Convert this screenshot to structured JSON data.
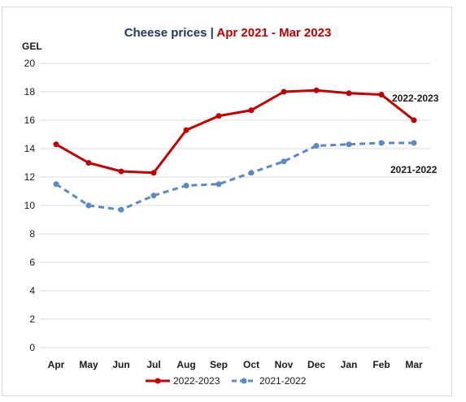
{
  "chart_data": {
    "type": "line",
    "title_part1": "Cheese prices | ",
    "title_part2": "Apr 2021 - Mar 2023",
    "ylabel": "GEL",
    "xlabel": "",
    "ylim": [
      0,
      20
    ],
    "yticks": [
      "0",
      "2",
      "4",
      "6",
      "8",
      "10",
      "12",
      "14",
      "16",
      "18",
      "20"
    ],
    "categories": [
      "Apr",
      "May",
      "Jun",
      "Jul",
      "Aug",
      "Sep",
      "Oct",
      "Nov",
      "Dec",
      "Jan",
      "Feb",
      "Mar"
    ],
    "grid": true,
    "legend_position": "bottom",
    "series": [
      {
        "name": "2022-2023",
        "values": [
          14.3,
          13.0,
          12.4,
          12.3,
          15.3,
          16.3,
          16.7,
          18.0,
          18.1,
          17.9,
          17.8,
          16.0
        ],
        "color": "#c00000",
        "dash": false
      },
      {
        "name": "2021-2022",
        "values": [
          11.5,
          10.0,
          9.7,
          10.7,
          11.4,
          11.5,
          12.3,
          13.1,
          14.2,
          14.3,
          14.4,
          14.4
        ],
        "color": "#5b8ac2",
        "dash": true
      }
    ],
    "series_labels": [
      "2022-2023",
      "2021-2022"
    ],
    "colors": {
      "title_part1": "#1f3864",
      "title_part2": "#c00000",
      "grid": "#d9d9d9"
    }
  }
}
